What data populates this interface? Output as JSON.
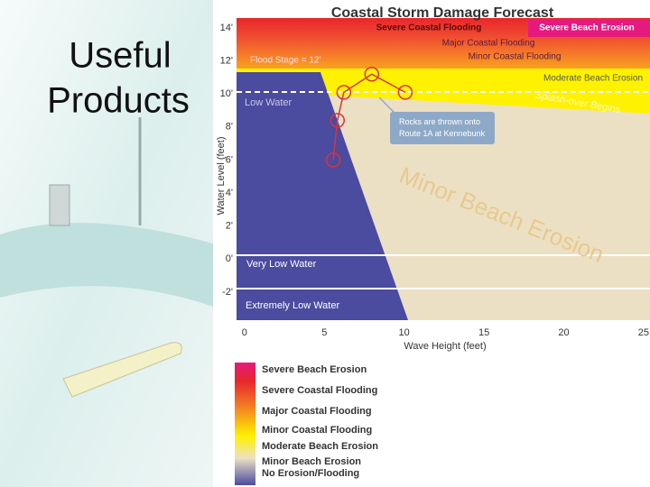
{
  "slide_title": "Useful Products",
  "chart_data": {
    "type": "line",
    "title": "Coastal Storm Damage Forecast",
    "x_label": "Wave Height (feet)",
    "y_label": "Water Level (feet)",
    "x": [
      5.56,
      5.82,
      6.22,
      7.97,
      10.07
    ],
    "values": [
      6.0,
      8.4,
      10.1,
      11.2,
      10.1
    ],
    "color": "#d8343c",
    "xlim": [
      -0.5,
      25.4
    ],
    "ylim": [
      -3.7,
      14.6
    ],
    "xticks": [
      0,
      5,
      10,
      15,
      20,
      25
    ],
    "yticks": [
      {
        "value": 14,
        "label": "14'"
      },
      {
        "value": 12,
        "label": "12'"
      },
      {
        "value": 10,
        "label": "10'"
      },
      {
        "value": 8,
        "label": "8'"
      },
      {
        "value": 6,
        "label": "6'"
      },
      {
        "value": 4,
        "label": "4'"
      },
      {
        "value": 2,
        "label": "2'"
      },
      {
        "value": 0,
        "label": "0'"
      },
      {
        "value": -2,
        "label": "-2'"
      }
    ],
    "region_labels": [
      "Severe Coastal Flooding",
      "Severe Beach Erosion",
      "Major Coastal Flooding",
      "Minor Coastal Flooding",
      "Flood Stage = 12'",
      "Moderate Beach Erosion",
      "Splash-over Begins",
      "Low Water",
      "Very Low Water",
      "Extremely Low Water",
      "Minor Beach Erosion"
    ],
    "annotation": "Rocks are thrown onto Route 1A at Kennebunk",
    "colorbar_labels": [
      "Severe Beach Erosion",
      "Severe Coastal Flooding",
      "Major Coastal Flooding",
      "Minor Coastal Flooding",
      "Moderate Beach Erosion",
      "Minor Beach Erosion",
      "No Erosion/Flooding"
    ]
  }
}
